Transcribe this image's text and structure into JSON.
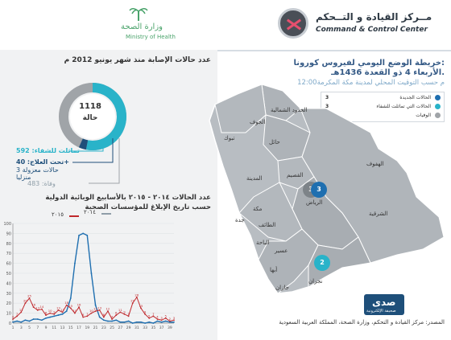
{
  "header": {
    "cc_title_ar": "مــركز القيادة و التــحكم",
    "cc_title_en": "Command & Control Center",
    "moh_title_ar": "وزارة الصحة",
    "moh_title_en": "Ministry of Health"
  },
  "left": {
    "cases_title": "عدد حالات الإصابة منذ شهر يونيو 2012 م",
    "donut_total": "1118",
    "donut_unit": "حالة",
    "legend": {
      "recovered": "تماثلت للشفاء: 592",
      "under_treatment": "تحت العلاج: 40+",
      "isolated": "3 حالات معزولة منزليا",
      "deaths": "وفاة: 483"
    },
    "weekly_title_line1": "عدد الحالات ٢٠١٤ - ٢٠١٥ بالأسابيع الوبائية الدولية",
    "weekly_title_line2": "حسب تاريخ الإبلاغ للمؤسسات الصحية"
  },
  "map": {
    "title_line1": "خريطة الوضع اليومي لفيروس كورونا:",
    "title_line2": "الأربعاء 4 ذو القعدة 1436هـ.",
    "time_note": "12:00م حسب التوقيت المحلي لمدينة مكة المكرمة",
    "legend": [
      {
        "label": "الحالات الجديدة",
        "value": "3",
        "color": "#1f6fb0"
      },
      {
        "label": "الحالات التي تماثلت للشفاء",
        "value": "3",
        "color": "#29b3c9"
      },
      {
        "label": "الوفيات",
        "value": "3",
        "color": "#a0a4a8"
      }
    ],
    "regions": {
      "northern_borders": "الحدود الشمالية",
      "jouf": "الجوف",
      "tabuk": "تبوك",
      "hail": "حائل",
      "qassim": "القصيم",
      "madinah": "المدينة",
      "riyadh": "الرياض",
      "eastern": "الشرقية",
      "hofuf": "الهفوف",
      "makkah": "مكة",
      "jeddah": "جدة",
      "taif": "الطائف",
      "baha": "الباحة",
      "asir": "عسير",
      "abha": "أبها",
      "jazan": "جازان",
      "najran": "نجران"
    },
    "pins": {
      "riyadh_deaths": "3",
      "riyadh_new": "3",
      "najran_new": "2"
    }
  },
  "source": {
    "line1": "المصدر: مركز القيادة و التحكم، وزارة الصحة، المملكة العربية السعودية"
  },
  "sada_logo": {
    "ar": "صدى",
    "small": "صحيفة الإلكترونية"
  },
  "chart_data": {
    "type": "line",
    "title": "",
    "xlabel": "",
    "ylabel": "",
    "ylim": [
      0,
      100
    ],
    "y_ticks": [
      "0",
      "10",
      "20",
      "30",
      "40",
      "50",
      "60",
      "70",
      "80",
      "90",
      "100"
    ],
    "x": [
      1,
      2,
      3,
      4,
      5,
      6,
      7,
      8,
      9,
      10,
      11,
      12,
      13,
      14,
      15,
      16,
      17,
      18,
      19,
      20,
      21,
      22,
      23,
      24,
      25,
      26,
      27,
      28,
      29,
      30,
      31,
      32,
      33,
      34,
      35,
      36,
      37,
      38,
      39,
      40
    ],
    "x_ticks": [
      "1",
      "3",
      "5",
      "7",
      "9",
      "11",
      "13",
      "15",
      "17",
      "19",
      "21",
      "23",
      "25",
      "27",
      "29",
      "31",
      "33",
      "35",
      "37",
      "39"
    ],
    "legend": [
      {
        "name": "٢٠١٤",
        "color": "#8f9ea8"
      },
      {
        "name": "٢٠١٥",
        "color": "#c0282c"
      }
    ],
    "series": [
      {
        "name": "٢٠١٤",
        "color": "#1f6fb0",
        "values": [
          1,
          2,
          1,
          3,
          2,
          4,
          4,
          3,
          5,
          6,
          7,
          8,
          9,
          12,
          25,
          60,
          88,
          90,
          88,
          50,
          18,
          6,
          3,
          2,
          2,
          3,
          1,
          1,
          2,
          0,
          1,
          1,
          0,
          1,
          0,
          2,
          1,
          2,
          1,
          1
        ]
      },
      {
        "name": "٢٠١٥",
        "color": "#c0282c",
        "values": [
          4,
          7,
          11,
          20,
          25,
          16,
          13,
          14,
          8,
          10,
          9,
          13,
          11,
          18,
          15,
          10,
          16,
          6,
          7,
          10,
          12,
          13,
          6,
          12,
          4,
          8,
          11,
          9,
          7,
          20,
          26,
          15,
          9,
          5,
          7,
          4,
          3,
          5,
          2,
          3
        ]
      }
    ]
  }
}
